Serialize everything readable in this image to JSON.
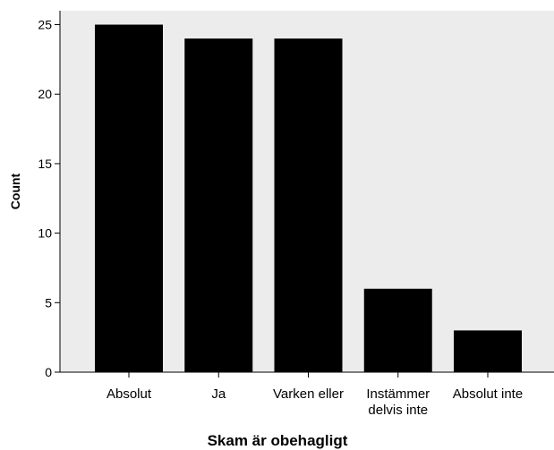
{
  "chart_data": {
    "type": "bar",
    "categories": [
      [
        "Absolut"
      ],
      [
        "Ja"
      ],
      [
        "Varken eller"
      ],
      [
        "Instämmer",
        "delvis inte"
      ],
      [
        "Absolut inte"
      ]
    ],
    "values": [
      25,
      24,
      24,
      6,
      3
    ],
    "xlabel": "Skam är obehagligt",
    "ylabel": "Count",
    "ylim": [
      0,
      26
    ],
    "yticks": [
      0,
      5,
      10,
      15,
      20,
      25
    ],
    "grid": false,
    "legend": "none",
    "colors": {
      "plot_background": "#ececec",
      "bar_fill": "#000000",
      "axis": "#000000"
    }
  }
}
